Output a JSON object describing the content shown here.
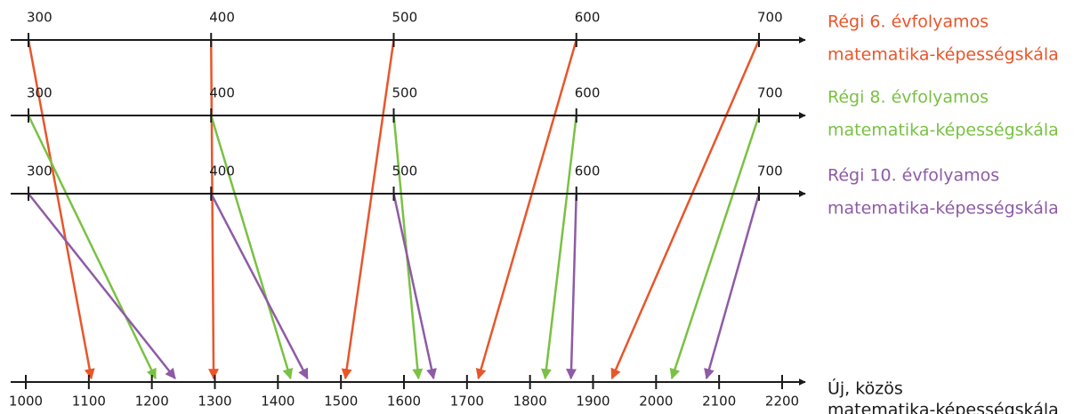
{
  "scales": [
    {
      "lines": [
        "Régi 6. évfolyamos",
        "matematika-képességskála"
      ],
      "color": "#e8562a",
      "ticks": [
        300,
        400,
        500,
        600,
        700
      ],
      "mappings": [
        1104,
        1298,
        1507,
        1718,
        1930
      ]
    },
    {
      "lines": [
        "Régi 8. évfolyamos",
        "matematika-képességskála"
      ],
      "color": "#7ac143",
      "ticks": [
        300,
        400,
        500,
        600,
        700
      ],
      "mappings": [
        1206,
        1420,
        1623,
        1824,
        2025
      ]
    },
    {
      "lines": [
        "Régi 10. évfolyamos",
        "matematika-képességskála"
      ],
      "color": "#8e5ba6",
      "ticks": [
        300,
        400,
        500,
        600,
        700
      ],
      "mappings": [
        1237,
        1447,
        1647,
        1865,
        2080
      ]
    }
  ],
  "new_scale": {
    "lines": [
      "Új, közös",
      "matematika-képességskála"
    ],
    "color": "#1a1a1a",
    "xlim": [
      1000,
      2200
    ],
    "ticks": [
      1000,
      1100,
      1200,
      1300,
      1400,
      1500,
      1600,
      1700,
      1800,
      1900,
      2000,
      2100,
      2200
    ]
  }
}
